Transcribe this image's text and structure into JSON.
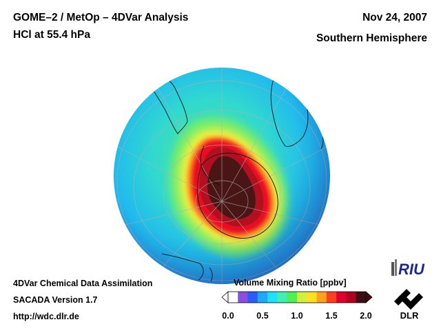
{
  "header": {
    "title_line1": "GOME–2 / MetOp – 4DVar Analysis",
    "title_line2": "HCl at 55.4 hPa",
    "date": "Nov 24, 2007",
    "hemisphere": "Southern Hemisphere"
  },
  "footer": {
    "line1": "4DVar Chemical Data Assimilation",
    "line2": "SACADA Version 1.7",
    "url": "http://wdc.dlr.de"
  },
  "colorbar": {
    "title": "Volume Mixing Ratio [ppbv]",
    "ticks": [
      "0.0",
      "0.5",
      "1.0",
      "1.5",
      "2.0"
    ],
    "range": [
      0.0,
      2.0
    ],
    "colors": [
      "#ffffff",
      "#8a4fe0",
      "#2a5cff",
      "#1fa8ff",
      "#20e0ff",
      "#40f0b0",
      "#50f050",
      "#d0f040",
      "#ffe020",
      "#ffa020",
      "#ff4020",
      "#e00030",
      "#b00020",
      "#3a1010"
    ]
  },
  "map": {
    "projection": "orthographic south-polar",
    "variable": "HCl",
    "background_value_ppbv": 0.6,
    "vortex_core_value_ppbv": 2.0
  },
  "logos": {
    "riu": "RIU",
    "dlr": "DLR"
  }
}
